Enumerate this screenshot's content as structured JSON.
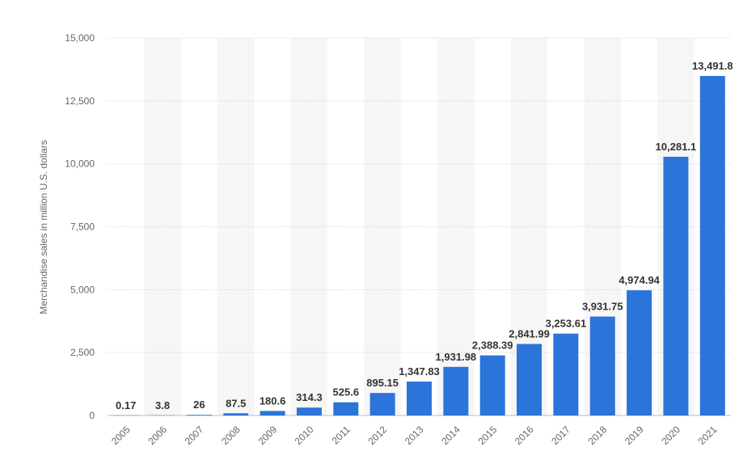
{
  "chart_data": {
    "type": "bar",
    "categories": [
      "2005",
      "2006",
      "2007",
      "2008",
      "2009",
      "2010",
      "2011",
      "2012",
      "2013",
      "2014",
      "2015",
      "2016",
      "2017",
      "2018",
      "2019",
      "2020",
      "2021"
    ],
    "values": [
      0.17,
      3.8,
      26,
      87.5,
      180.6,
      314.3,
      525.6,
      895.15,
      1347.83,
      1931.98,
      2388.39,
      2841.99,
      3253.61,
      3931.75,
      4974.94,
      10281.1,
      13491.8
    ],
    "value_labels": [
      "0.17",
      "3.8",
      "26",
      "87.5",
      "180.6",
      "314.3",
      "525.6",
      "895.15",
      "1,347.83",
      "1,931.98",
      "2,388.39",
      "2,841.99",
      "3,253.61",
      "3,931.75",
      "4,974.94",
      "10,281.1",
      "13,491.8"
    ],
    "yticks": [
      0,
      2500,
      5000,
      7500,
      10000,
      12500,
      15000
    ],
    "ytick_labels": [
      "0",
      "2,500",
      "5,000",
      "7,500",
      "10,000",
      "12,500",
      "15,000"
    ],
    "ylim": [
      0,
      15000
    ],
    "ylabel": "Merchandise sales in million U.S. dollars",
    "xlabel": "",
    "grid": true,
    "bar_color": "#2b74d9",
    "band_color": "#f6f6f6",
    "grid_color": "#cccccc"
  }
}
